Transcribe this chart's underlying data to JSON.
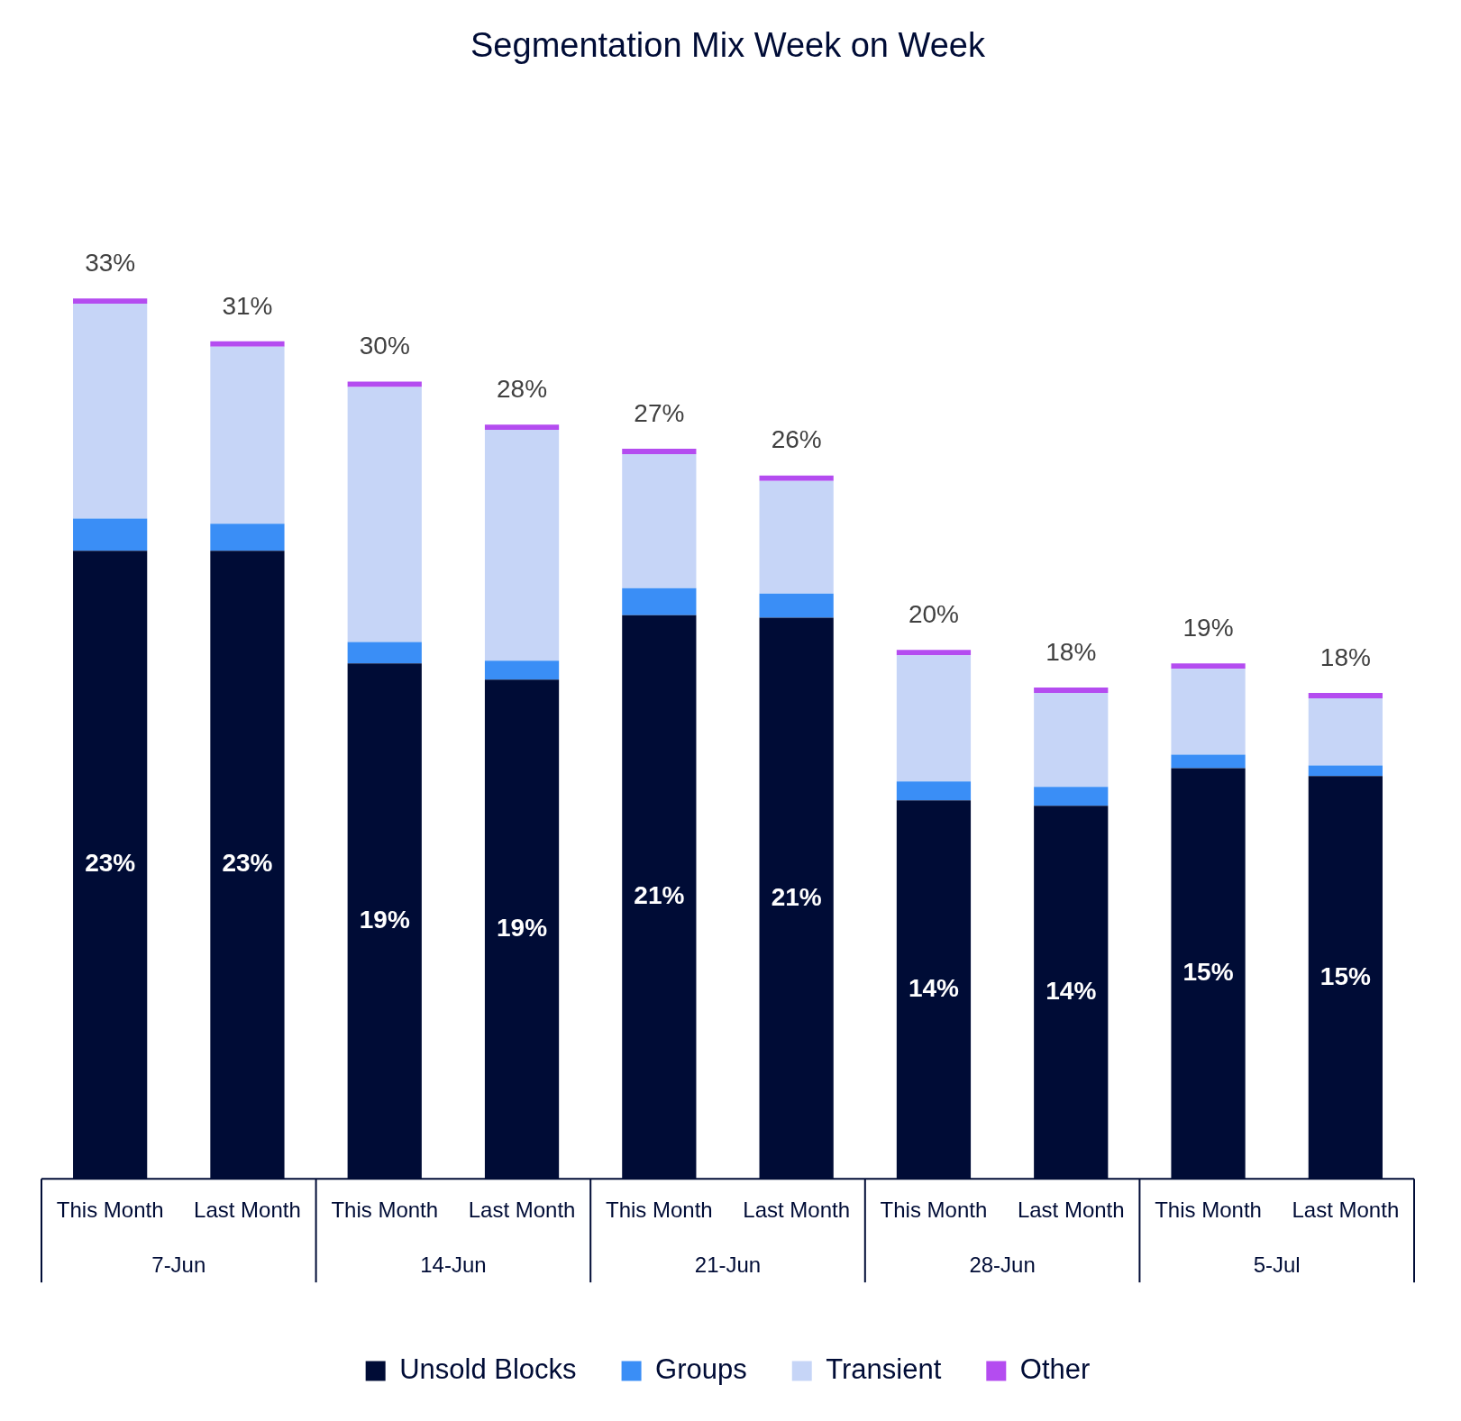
{
  "chart_data": {
    "type": "bar",
    "title": "Segmentation Mix Week on Week",
    "stacked": true,
    "categories": [
      "This Month",
      "Last Month",
      "This Month",
      "Last Month",
      "This Month",
      "Last Month",
      "This Month",
      "Last Month",
      "This Month",
      "Last Month"
    ],
    "annotations": [
      "7-Jun",
      "14-Jun",
      "21-Jun",
      "28-Jun",
      "5-Jul"
    ],
    "series": [
      {
        "name": "Unsold Blocks",
        "color": "#000c36",
        "values": [
          23.4,
          23.4,
          19.2,
          18.6,
          21.0,
          20.9,
          14.1,
          13.9,
          15.3,
          15.0
        ],
        "value_labels": [
          "23%",
          "23%",
          "19%",
          "19%",
          "21%",
          "21%",
          "14%",
          "14%",
          "15%",
          "15%"
        ]
      },
      {
        "name": "Groups",
        "color": "#3a8ef6",
        "values": [
          1.2,
          1.0,
          0.8,
          0.7,
          1.0,
          0.9,
          0.7,
          0.7,
          0.5,
          0.4
        ]
      },
      {
        "name": "Transient",
        "color": "#c6d5f7",
        "values": [
          8.0,
          6.6,
          9.5,
          8.6,
          5.0,
          4.2,
          4.7,
          3.5,
          3.2,
          2.5
        ]
      },
      {
        "name": "Other",
        "color": "#b44cf0",
        "values": [
          0.2,
          0.2,
          0.2,
          0.2,
          0.2,
          0.2,
          0.2,
          0.2,
          0.2,
          0.2
        ]
      }
    ],
    "totals": [
      "33%",
      "31%",
      "30%",
      "28%",
      "27%",
      "26%",
      "20%",
      "18%",
      "19%",
      "18%"
    ],
    "grid": false,
    "legend": "bottom"
  }
}
